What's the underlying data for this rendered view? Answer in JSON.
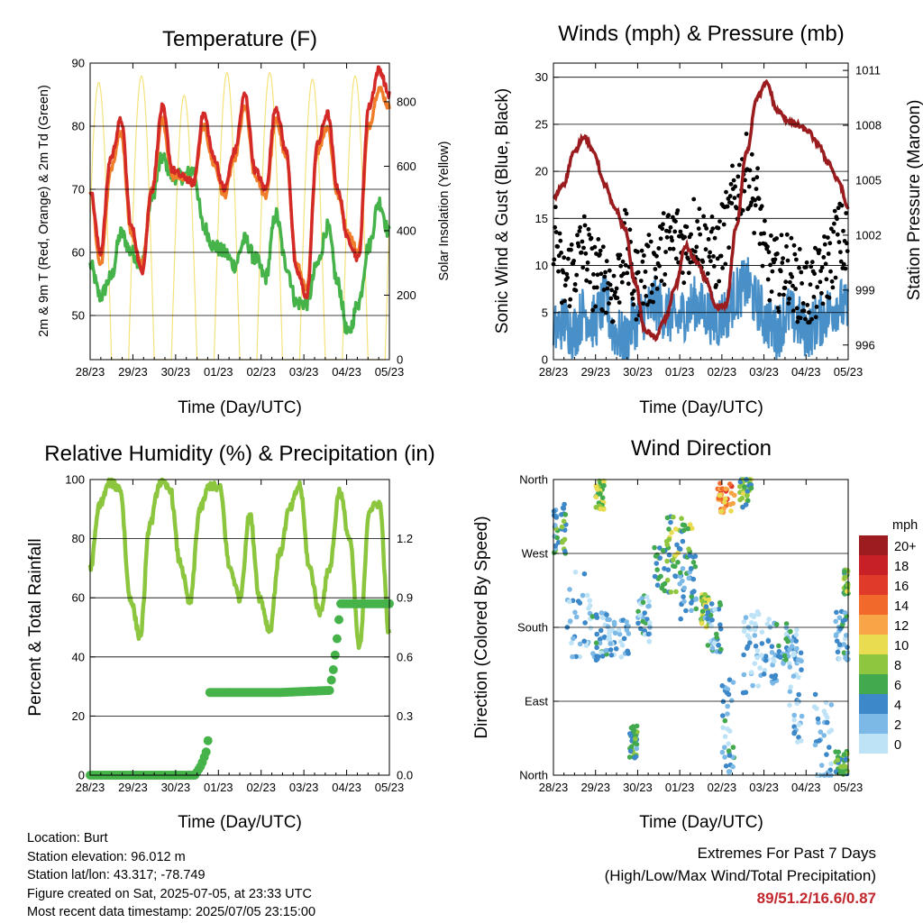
{
  "chart_data": [
    {
      "type": "line",
      "title": "Temperature (F)",
      "xlabel": "Time (Day/UTC)",
      "ylabel": "2m & 9m T (Red, Orange) & 2m Td (Green)",
      "ylabel_right": "Solar Insolation (Yellow)",
      "x_ticks": [
        "28/23",
        "29/23",
        "30/23",
        "01/23",
        "02/23",
        "03/23",
        "04/23",
        "05/23"
      ],
      "ylim": [
        43,
        90
      ],
      "y_ticks": [
        "50",
        "60",
        "70",
        "80",
        "90"
      ],
      "y2lim": [
        0,
        920
      ],
      "y2_ticks": [
        "0",
        "200",
        "400",
        "600",
        "800"
      ],
      "grid": true,
      "series": [
        {
          "name": "2m T",
          "color": "#d42a27",
          "values": [
            70,
            60,
            75,
            81,
            64,
            57,
            70,
            83,
            73,
            72,
            71,
            82,
            75,
            70,
            76,
            85,
            73,
            70,
            83,
            76,
            57,
            53,
            77,
            82,
            70,
            62,
            59,
            83,
            89,
            85
          ]
        },
        {
          "name": "9m T",
          "color": "#f07d2a",
          "values": [
            70,
            58,
            73,
            79,
            63,
            58,
            70,
            81,
            72,
            72,
            71,
            80,
            74,
            69,
            75,
            83,
            72,
            69,
            81,
            75,
            58,
            54,
            76,
            80,
            69,
            63,
            60,
            80,
            86,
            83
          ]
        },
        {
          "name": "2m Td",
          "color": "#46b34a",
          "values": [
            58,
            53,
            56,
            63,
            60,
            58,
            69,
            75,
            72,
            72,
            73,
            64,
            61,
            60,
            58,
            62,
            59,
            56,
            66,
            58,
            52,
            52,
            58,
            64,
            55,
            47,
            52,
            61,
            68,
            63
          ]
        },
        {
          "name": "Solar Insolation",
          "color": "#f5e27a",
          "peaks": [
            860,
            880,
            820,
            890,
            890,
            870,
            880,
            860
          ]
        }
      ]
    },
    {
      "type": "scatter",
      "title": "Winds (mph) & Pressure (mb)",
      "xlabel": "Time (Day/UTC)",
      "ylabel": "Sonic Wind & Gust (Blue, Black)",
      "ylabel_right": "Station Pressure (Maroon)",
      "x_ticks": [
        "28/23",
        "29/23",
        "30/23",
        "01/23",
        "02/23",
        "03/23",
        "04/23",
        "05/23"
      ],
      "ylim": [
        0,
        31.5
      ],
      "y_ticks": [
        "0",
        "5",
        "10",
        "15",
        "20",
        "25",
        "30"
      ],
      "y2lim": [
        995.2,
        1011.4
      ],
      "y2_ticks": [
        "996",
        "999",
        "1002",
        "1005",
        "1008",
        "1011"
      ],
      "grid": true,
      "series": [
        {
          "name": "Wind",
          "color": "#4a90c8",
          "values": [
            3,
            4,
            3,
            5,
            4,
            6,
            3,
            2,
            4,
            5,
            6,
            5,
            4,
            5,
            6,
            5,
            4,
            5,
            7,
            8,
            6,
            4,
            3,
            5,
            4,
            3,
            4,
            5,
            6,
            5
          ]
        },
        {
          "name": "Gust",
          "color": "#000000",
          "values": [
            14,
            8,
            10,
            12,
            9,
            9,
            7,
            12,
            8,
            9,
            10,
            12,
            13,
            12,
            14,
            12,
            11,
            14,
            18,
            20,
            17,
            10,
            9,
            10,
            8,
            7,
            8,
            10,
            13,
            12
          ]
        },
        {
          "name": "Station Pressure",
          "color": "#9a1c1f",
          "values": [
            1004,
            1004.8,
            1006.5,
            1007.4,
            1006.5,
            1004.8,
            1003.5,
            1002.4,
            999.5,
            996.8,
            996.4,
            997.4,
            999.2,
            1001.4,
            1000.6,
            999.6,
            998,
            998.2,
            1002.5,
            1006.5,
            1009.5,
            1010.3,
            1008.8,
            1008.3,
            1008,
            1007.7,
            1007,
            1006,
            1005,
            1003.5
          ]
        }
      ]
    },
    {
      "type": "line",
      "title": "Relative Humidity (%) & Precipitation (in)",
      "xlabel": "Time (Day/UTC)",
      "ylabel": "Percent & Total Rainfall",
      "x_ticks": [
        "28/23",
        "29/23",
        "30/23",
        "01/23",
        "02/23",
        "03/23",
        "04/23",
        "05/23"
      ],
      "ylim": [
        0,
        100
      ],
      "y_ticks": [
        "0",
        "20",
        "40",
        "60",
        "80",
        "100"
      ],
      "y2lim": [
        0,
        1.5
      ],
      "y2_ticks": [
        "0.0",
        "0.3",
        "0.6",
        "0.9",
        "1.2"
      ],
      "grid": true,
      "series": [
        {
          "name": "Relative Humidity",
          "color": "#8cc63f",
          "values": [
            70,
            92,
            99,
            97,
            60,
            47,
            85,
            99,
            97,
            72,
            58,
            90,
            98,
            97,
            70,
            60,
            88,
            60,
            49,
            75,
            90,
            98,
            70,
            55,
            70,
            96,
            80,
            43,
            90,
            92,
            47
          ]
        },
        {
          "name": "Total Rainfall",
          "color": "#46b34a",
          "precip": [
            [
              0,
              0
            ],
            [
              2.45,
              0
            ],
            [
              2.6,
              0.05
            ],
            [
              2.75,
              0.14
            ],
            [
              2.8,
              0.42
            ],
            [
              4.5,
              0.42
            ],
            [
              5.6,
              0.43
            ],
            [
              5.7,
              0.55
            ],
            [
              5.8,
              0.74
            ],
            [
              5.85,
              0.87
            ],
            [
              8,
              0.87
            ]
          ]
        }
      ]
    },
    {
      "type": "scatter",
      "title": "Wind Direction",
      "xlabel": "Time (Day/UTC)",
      "ylabel": "Direction (Colored By Speed)",
      "x_ticks": [
        "28/23",
        "29/23",
        "30/23",
        "01/23",
        "02/23",
        "03/23",
        "04/23",
        "05/23"
      ],
      "y_ticks": [
        "North",
        "East",
        "South",
        "West",
        "North"
      ],
      "ylim": [
        0,
        360
      ],
      "grid": true,
      "legend": {
        "title": "mph",
        "placement": "right",
        "labels": [
          "20+",
          "18",
          "16",
          "14",
          "12",
          "10",
          "8",
          "6",
          "4",
          "2",
          "0"
        ],
        "colors": [
          "#9d1c20",
          "#c72127",
          "#e03a2b",
          "#f16a2c",
          "#f8a547",
          "#e9dc51",
          "#8ec73f",
          "#43a94f",
          "#3c88c8",
          "#7cb9e6",
          "#bfe3f6"
        ]
      }
    }
  ],
  "info": {
    "location": "Location: Burt",
    "elevation": "Station elevation: 96.012 m",
    "latlon": "Station lat/lon: 43.317; -78.749",
    "created": "Figure created on Sat, 2025-07-05, at 23:33 UTC",
    "latest": "Most recent data timestamp: 2025/07/05 23:15:00"
  },
  "extremes": {
    "line1": "Extremes For Past 7 Days",
    "line2": "(High/Low/Max Wind/Total Precipitation)",
    "value": "89/51.2/16.6/0.87"
  }
}
